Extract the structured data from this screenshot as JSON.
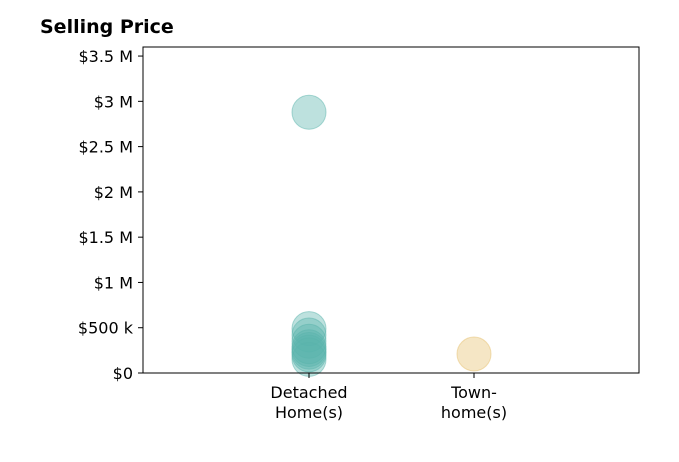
{
  "chart_data": {
    "type": "scatter",
    "title": "Selling Price",
    "xlabel": "",
    "ylabel": "",
    "categories": [
      {
        "key": "detached",
        "lines": [
          "Detached",
          "Home(s)"
        ]
      },
      {
        "key": "townhome",
        "lines": [
          "Town-",
          "home(s)"
        ]
      }
    ],
    "ylim": [
      0,
      3600000
    ],
    "y_ticks": [
      {
        "value": 0,
        "label": "$0"
      },
      {
        "value": 500000,
        "label": "$500 k"
      },
      {
        "value": 1000000,
        "label": "$1 M"
      },
      {
        "value": 1500000,
        "label": "$1.5 M"
      },
      {
        "value": 2000000,
        "label": "$2 M"
      },
      {
        "value": 2500000,
        "label": "$2.5 M"
      },
      {
        "value": 3000000,
        "label": "$3 M"
      },
      {
        "value": 3500000,
        "label": "$3.5 M"
      }
    ],
    "grid": false,
    "series": [
      {
        "category": "detached",
        "color": "#5ab4ac",
        "values": [
          2880000,
          490000,
          420000,
          350000,
          290000,
          260000,
          230000,
          200000,
          150000
        ]
      },
      {
        "category": "townhome",
        "color": "#e6c06d",
        "values": [
          210000
        ]
      }
    ]
  }
}
